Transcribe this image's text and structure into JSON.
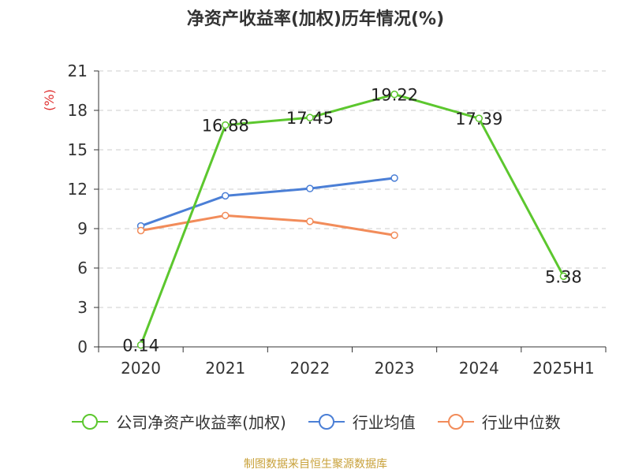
{
  "chart_data": {
    "type": "line",
    "title": "净资产收益率(加权)历年情况(%)",
    "ylabel": "(%)",
    "ylim": [
      0,
      21
    ],
    "yticks": [
      0,
      3,
      6,
      9,
      12,
      15,
      18,
      21
    ],
    "categories": [
      "2020",
      "2021",
      "2022",
      "2023",
      "2024",
      "2025H1"
    ],
    "grid": true,
    "legend_position": "bottom",
    "series": [
      {
        "name": "公司净资产收益率(加权)",
        "color": "#5cc72e",
        "values": [
          0.14,
          16.88,
          17.45,
          19.22,
          17.39,
          5.38
        ],
        "labels": [
          "0.14",
          "16.88",
          "17.45",
          "19.22",
          "17.39",
          "5.38"
        ]
      },
      {
        "name": "行业均值",
        "color": "#4b7fd6",
        "values": [
          9.2,
          11.5,
          12.05,
          12.85,
          null,
          null
        ]
      },
      {
        "name": "行业中位数",
        "color": "#f28c5a",
        "values": [
          8.85,
          10.0,
          9.55,
          8.5,
          null,
          null
        ]
      }
    ],
    "source": "制图数据来自恒生聚源数据库"
  }
}
